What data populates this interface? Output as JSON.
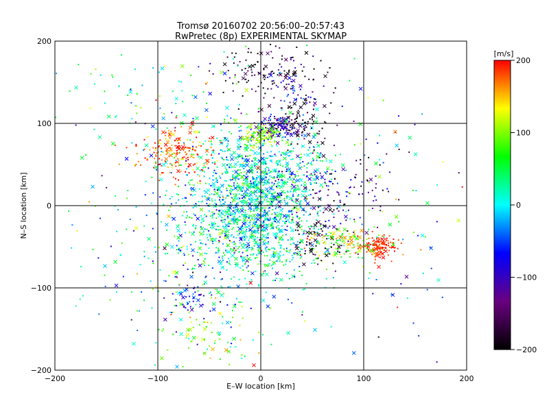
{
  "chart_data": {
    "type": "scatter",
    "title": "Tromsø 20160702 20:56:00–20:57:43",
    "subtitle": "RwPretec (8p) EXPERIMENTAL SKYMAP",
    "xlabel": "E–W location [km]",
    "ylabel": "N–S location [km]",
    "xlim": [
      -200,
      200
    ],
    "ylim": [
      -200,
      200
    ],
    "x_ticks": [
      "−200",
      "−100",
      "0",
      "100",
      "200"
    ],
    "y_ticks": [
      "−200",
      "−100",
      "0",
      "100",
      "200"
    ],
    "grid": true,
    "colorbar": {
      "label": "[m/s]",
      "min": -200,
      "max": 200,
      "ticks": [
        "200",
        "100",
        "0",
        "−100",
        "−200"
      ],
      "colormap": [
        "#000000",
        "#6a0080",
        "#0000ff",
        "#00ffff",
        "#00ff00",
        "#ffff00",
        "#ff0000"
      ]
    },
    "markers": [
      "dot",
      "cross"
    ],
    "clusters": [
      {
        "x": 0,
        "y": 0,
        "sx": 28,
        "sy": 40,
        "n": 900,
        "v": 10,
        "vs": 45
      },
      {
        "x": -20,
        "y": -20,
        "sx": 35,
        "sy": 35,
        "n": 400,
        "v": 20,
        "vs": 50
      },
      {
        "x": -10,
        "y": 50,
        "sx": 40,
        "sy": 25,
        "n": 300,
        "v": 10,
        "vs": 50
      },
      {
        "x": 15,
        "y": 95,
        "sx": 12,
        "sy": 8,
        "n": 120,
        "v": -110,
        "vs": 40
      },
      {
        "x": 0,
        "y": 85,
        "sx": 10,
        "sy": 6,
        "n": 100,
        "v": 100,
        "vs": 25
      },
      {
        "x": 40,
        "y": 100,
        "sx": 12,
        "sy": 10,
        "n": 60,
        "v": -190,
        "vs": 15
      },
      {
        "x": -80,
        "y": 65,
        "sx": 18,
        "sy": 15,
        "n": 200,
        "v": 175,
        "vs": 30
      },
      {
        "x": 115,
        "y": -50,
        "sx": 8,
        "sy": 7,
        "n": 130,
        "v": 190,
        "vs": 15
      },
      {
        "x": 80,
        "y": -45,
        "sx": 20,
        "sy": 10,
        "n": 150,
        "v": 110,
        "vs": 50
      },
      {
        "x": 0,
        "y": 165,
        "sx": 25,
        "sy": 20,
        "n": 100,
        "v": -180,
        "vs": 40
      },
      {
        "x": 35,
        "y": 140,
        "sx": 20,
        "sy": 18,
        "n": 80,
        "v": -120,
        "vs": 60
      },
      {
        "x": 70,
        "y": 20,
        "sx": 30,
        "sy": 30,
        "n": 150,
        "v": -120,
        "vs": 60
      },
      {
        "x": 55,
        "y": -40,
        "sx": 15,
        "sy": 15,
        "n": 60,
        "v": -180,
        "vs": 30
      },
      {
        "x": -110,
        "y": 130,
        "sx": 50,
        "sy": 30,
        "n": 80,
        "v": 40,
        "vs": 60
      },
      {
        "x": -60,
        "y": -60,
        "sx": 50,
        "sy": 60,
        "n": 200,
        "v": 10,
        "vs": 70
      },
      {
        "x": 0,
        "y": 0,
        "sx": 110,
        "sy": 100,
        "n": 350,
        "v": 10,
        "vs": 90
      },
      {
        "x": -70,
        "y": -110,
        "sx": 10,
        "sy": 10,
        "n": 40,
        "v": -80,
        "vs": 30
      },
      {
        "x": -50,
        "y": -160,
        "sx": 30,
        "sy": 20,
        "n": 60,
        "v": 80,
        "vs": 40
      }
    ]
  }
}
